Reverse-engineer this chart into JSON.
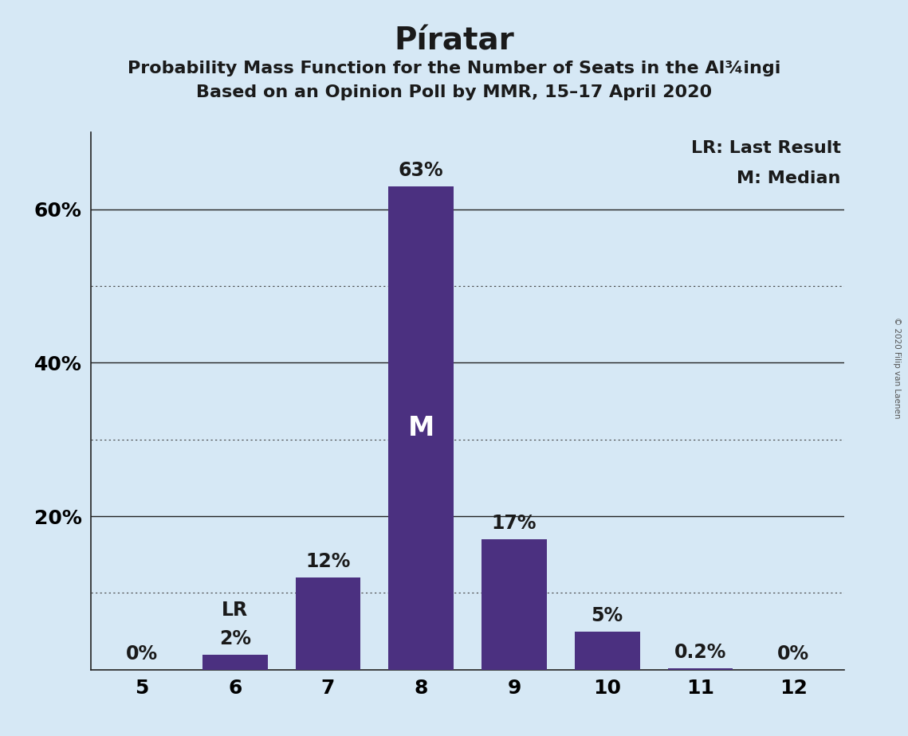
{
  "title": "Píratar",
  "subtitle1": "Probability Mass Function for the Number of Seats in the Al¾ingi",
  "subtitle2": "Based on an Opinion Poll by MMR, 15–17 April 2020",
  "copyright": "© 2020 Filip van Laenen",
  "categories": [
    5,
    6,
    7,
    8,
    9,
    10,
    11,
    12
  ],
  "values": [
    0.0,
    2.0,
    12.0,
    63.0,
    17.0,
    5.0,
    0.2,
    0.0
  ],
  "bar_color": "#4B3080",
  "background_color": "#D6E8F5",
  "text_color": "#1a1a1a",
  "bar_label_color_dark": "#1a1a1a",
  "median_seat": 8,
  "last_result_seat": 6,
  "legend_lr": "LR: Last Result",
  "legend_m": "M: Median",
  "ylim": [
    0,
    70
  ],
  "solid_gridlines": [
    20,
    40,
    60
  ],
  "dotted_gridlines": [
    10,
    30,
    50
  ],
  "bar_labels": [
    "0%",
    "2%",
    "12%",
    "63%",
    "17%",
    "5%",
    "0.2%",
    "0%"
  ],
  "title_fontsize": 28,
  "subtitle_fontsize": 16,
  "tick_fontsize": 18,
  "bar_label_fontsize": 17,
  "legend_fontsize": 16,
  "m_fontsize": 24
}
